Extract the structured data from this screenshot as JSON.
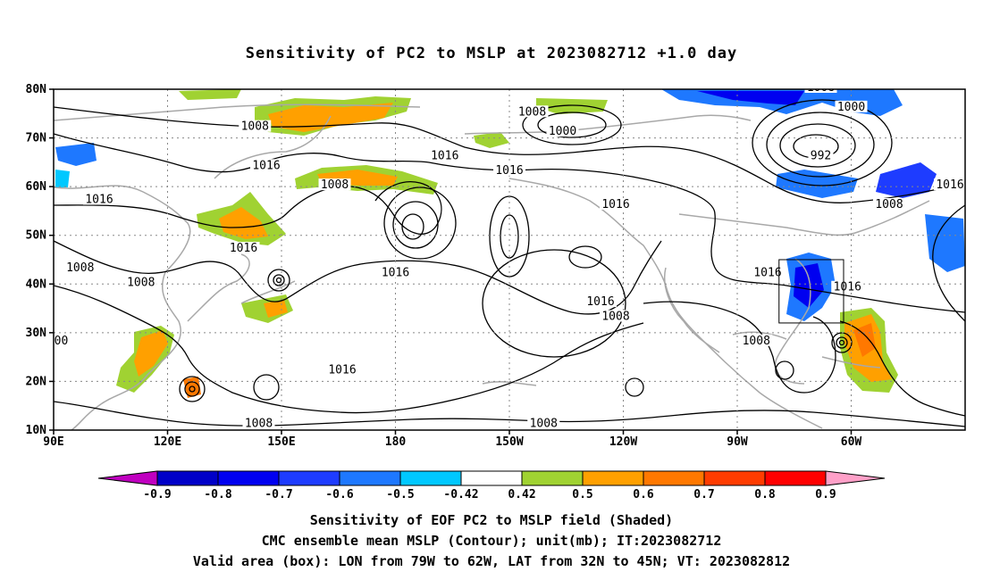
{
  "title": "Sensitivity of PC2 to MSLP at 2023082712 +1.0 day",
  "map": {
    "lon_range": [
      90,
      330
    ],
    "lat_range": [
      10,
      80
    ],
    "lat_ticks": [
      {
        "lat": 80,
        "label": "80N"
      },
      {
        "lat": 70,
        "label": "70N"
      },
      {
        "lat": 60,
        "label": "60N"
      },
      {
        "lat": 50,
        "label": "50N"
      },
      {
        "lat": 40,
        "label": "40N"
      },
      {
        "lat": 30,
        "label": "30N"
      },
      {
        "lat": 20,
        "label": "20N"
      },
      {
        "lat": 10,
        "label": "10N"
      }
    ],
    "lon_ticks": [
      {
        "lon": 90,
        "label": "90E"
      },
      {
        "lon": 120,
        "label": "120E"
      },
      {
        "lon": 150,
        "label": "150E"
      },
      {
        "lon": 180,
        "label": "180"
      },
      {
        "lon": 210,
        "label": "150W"
      },
      {
        "lon": 240,
        "label": "120W"
      },
      {
        "lon": 270,
        "label": "90W"
      },
      {
        "lon": 300,
        "label": "60W"
      }
    ],
    "grid": "dotted",
    "valid_box": {
      "lon_min": 281,
      "lon_max": 298,
      "lat_min": 32,
      "lat_max": 45
    },
    "contour_labels": [
      {
        "text": "1008",
        "lon": 143,
        "lat": 72
      },
      {
        "text": "1008",
        "lon": 216,
        "lat": 75
      },
      {
        "text": "1000",
        "lon": 224,
        "lat": 71
      },
      {
        "text": "1008",
        "lon": 292,
        "lat": 80
      },
      {
        "text": "1000",
        "lon": 300,
        "lat": 76
      },
      {
        "text": "992",
        "lon": 292,
        "lat": 66
      },
      {
        "text": "1016",
        "lon": 146,
        "lat": 64
      },
      {
        "text": "1016",
        "lon": 102,
        "lat": 57
      },
      {
        "text": "1008",
        "lon": 164,
        "lat": 60
      },
      {
        "text": "1016",
        "lon": 193,
        "lat": 66
      },
      {
        "text": "1016",
        "lon": 210,
        "lat": 63
      },
      {
        "text": "1016",
        "lon": 238,
        "lat": 56
      },
      {
        "text": "1008",
        "lon": 310,
        "lat": 56
      },
      {
        "text": "1016",
        "lon": 326,
        "lat": 60
      },
      {
        "text": "1008",
        "lon": 97,
        "lat": 43
      },
      {
        "text": "1016",
        "lon": 140,
        "lat": 47
      },
      {
        "text": "1008",
        "lon": 113,
        "lat": 40
      },
      {
        "text": "1016",
        "lon": 180,
        "lat": 42
      },
      {
        "text": "1016",
        "lon": 278,
        "lat": 42
      },
      {
        "text": "1016",
        "lon": 299,
        "lat": 39
      },
      {
        "text": "1016",
        "lon": 234,
        "lat": 36
      },
      {
        "text": "1008",
        "lon": 238,
        "lat": 33
      },
      {
        "text": "1008",
        "lon": 275,
        "lat": 28
      },
      {
        "text": "00",
        "lon": 92,
        "lat": 28
      },
      {
        "text": "1016",
        "lon": 166,
        "lat": 22
      },
      {
        "text": "1008",
        "lon": 144,
        "lat": 11
      },
      {
        "text": "1008",
        "lon": 219,
        "lat": 11
      }
    ]
  },
  "colorbar": {
    "labels": [
      "-0.9",
      "-0.8",
      "-0.7",
      "-0.6",
      "-0.5",
      "-0.42",
      "0.42",
      "0.5",
      "0.6",
      "0.7",
      "0.8",
      "0.9"
    ],
    "colors": [
      "#c000c0",
      "#0000c8",
      "#0000f0",
      "#1e3cff",
      "#1e78ff",
      "#00c8ff",
      "#ffffff",
      "#a0d232",
      "#ffa000",
      "#ff7800",
      "#ff3c00",
      "#ff0000",
      "#ffa0c8"
    ]
  },
  "captions": {
    "line1": "Sensitivity of EOF PC2 to MSLP field (Shaded)",
    "line2": "CMC ensemble mean MSLP (Contour); unit(mb); IT:2023082712",
    "line3": "Valid area (box): LON from 79W to 62W, LAT from 32N to 45N; VT: 2023082812"
  }
}
